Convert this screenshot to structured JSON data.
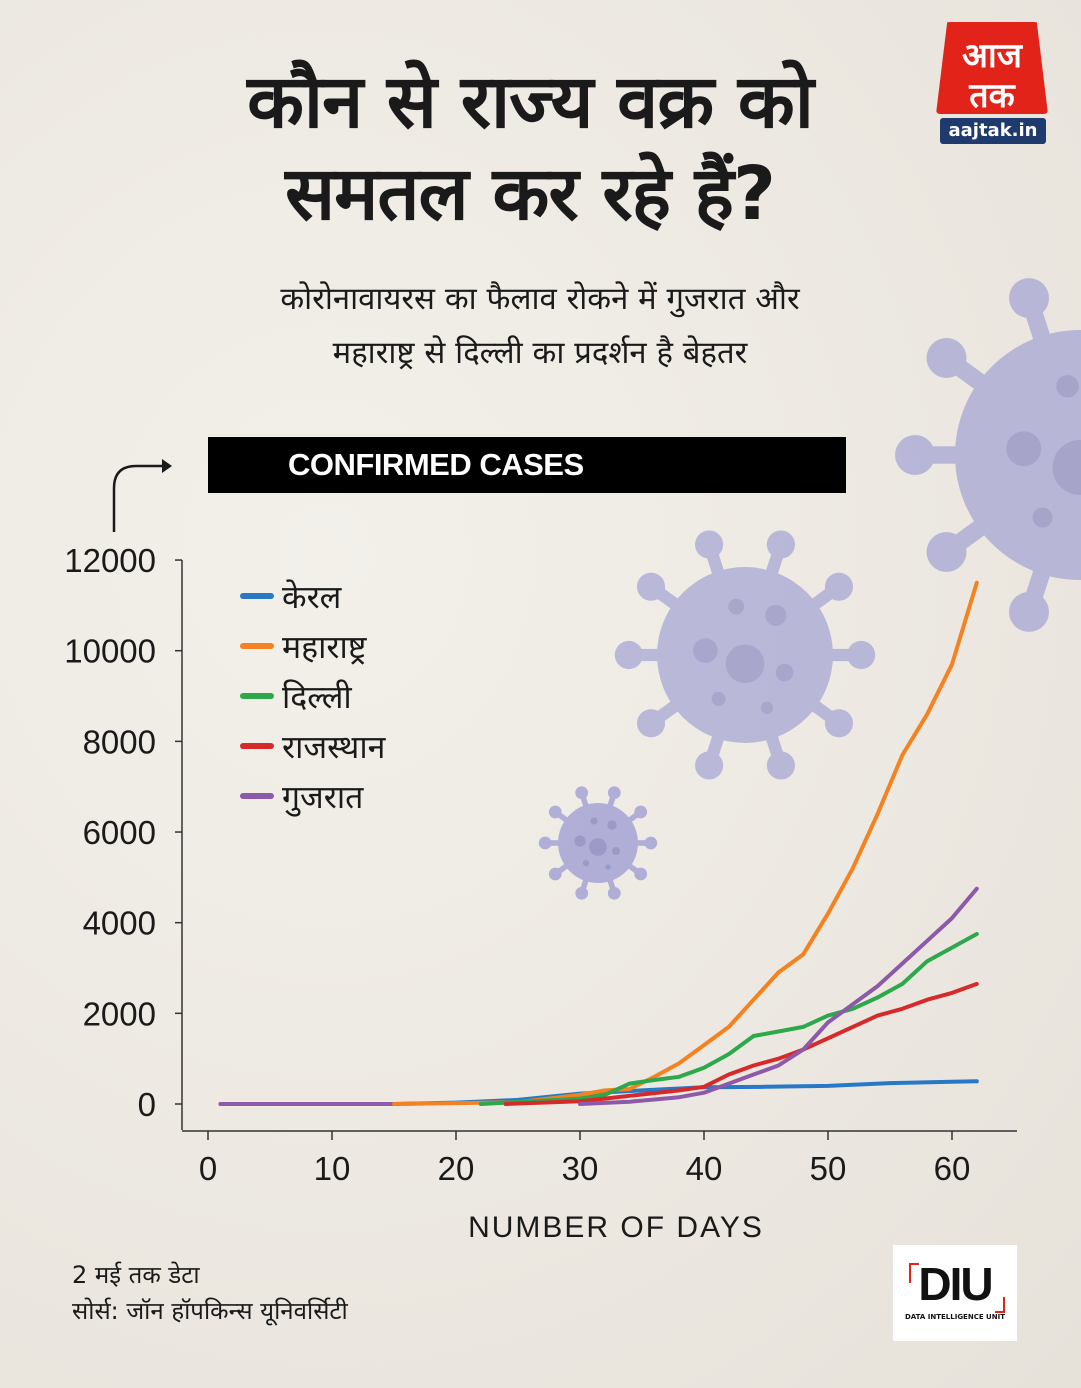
{
  "header": {
    "title_line1": "कौन से राज्य वक्र को",
    "title_line2": "समतल कर रहे हैं?",
    "subtitle_line1": "कोरोनावायरस का फैलाव रोकने में गुजरात और",
    "subtitle_line2": "महाराष्ट्र से दिल्ली का प्रदर्शन है बेहतर"
  },
  "logo": {
    "mark_text": "आज तक",
    "site": "aajtak.in"
  },
  "footer": {
    "note": "2 मई तक डेटा",
    "source": "सोर्स: जॉन हॉपकिन्स यूनिवर्सिटी",
    "unit_logo": "DIU",
    "unit_name": "DATA INTELLIGENCE UNIT"
  },
  "colors": {
    "background": "#efebe4",
    "virus": "#8f8fd0",
    "banner": "#000000"
  },
  "chart_data": {
    "type": "line",
    "title": "CONFIRMED CASES",
    "xlabel": "NUMBER OF DAYS",
    "ylabel": "",
    "xlim": [
      0,
      65
    ],
    "ylim": [
      0,
      12000
    ],
    "xticks": [
      0,
      10,
      20,
      30,
      40,
      50,
      60
    ],
    "yticks": [
      0,
      2000,
      4000,
      6000,
      8000,
      10000,
      12000
    ],
    "grid": false,
    "legend_position": "top-left",
    "series": [
      {
        "name": "केरल",
        "color": "#2878c8",
        "x": [
          15,
          20,
          25,
          30,
          35,
          40,
          45,
          50,
          55,
          60,
          62
        ],
        "y": [
          0,
          30,
          90,
          230,
          300,
          370,
          380,
          400,
          460,
          490,
          500
        ]
      },
      {
        "name": "महाराष्ट्र",
        "color": "#f58220",
        "x": [
          15,
          25,
          30,
          32,
          34,
          36,
          38,
          40,
          42,
          44,
          46,
          48,
          50,
          52,
          54,
          56,
          58,
          60,
          62
        ],
        "y": [
          0,
          40,
          200,
          300,
          330,
          600,
          900,
          1300,
          1700,
          2300,
          2900,
          3300,
          4200,
          5200,
          6400,
          7700,
          8600,
          9700,
          11500
        ]
      },
      {
        "name": "दिल्ली",
        "color": "#2da84a",
        "x": [
          22,
          30,
          32,
          34,
          36,
          38,
          40,
          42,
          44,
          46,
          48,
          50,
          52,
          54,
          56,
          58,
          60,
          62
        ],
        "y": [
          0,
          120,
          200,
          450,
          530,
          600,
          800,
          1100,
          1500,
          1600,
          1700,
          1950,
          2100,
          2350,
          2650,
          3150,
          3450,
          3750
        ]
      },
      {
        "name": "राजस्थान",
        "color": "#d62a2a",
        "x": [
          24,
          30,
          32,
          34,
          36,
          38,
          40,
          42,
          44,
          46,
          48,
          50,
          52,
          54,
          56,
          58,
          60,
          62
        ],
        "y": [
          0,
          60,
          120,
          180,
          240,
          300,
          380,
          650,
          850,
          1000,
          1200,
          1450,
          1700,
          1950,
          2100,
          2300,
          2450,
          2650
        ]
      },
      {
        "name": "गुजरात",
        "color": "#8c5aa8",
        "x": [
          30,
          34,
          36,
          38,
          40,
          42,
          44,
          46,
          48,
          50,
          52,
          54,
          56,
          58,
          60,
          62
        ],
        "y": [
          0,
          50,
          100,
          150,
          250,
          450,
          650,
          850,
          1200,
          1800,
          2200,
          2600,
          3100,
          3600,
          4100,
          4750
        ]
      }
    ]
  }
}
